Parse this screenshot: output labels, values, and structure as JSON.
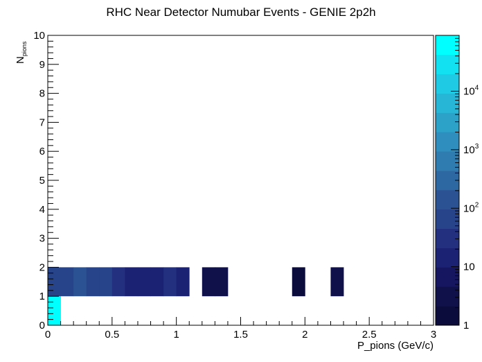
{
  "chart_data": {
    "type": "heatmap",
    "title": "RHC Near Detector Numubar Events - GENIE 2p2h",
    "xlabel": "P_pions (GeV/c)",
    "ylabel_main": "N",
    "ylabel_sub": "pions",
    "xlim": [
      0,
      3
    ],
    "ylim": [
      0,
      10
    ],
    "x_ticks": [
      "0",
      "0.5",
      "1",
      "1.5",
      "2",
      "2.5",
      "3"
    ],
    "y_ticks": [
      "0",
      "1",
      "2",
      "3",
      "4",
      "5",
      "6",
      "7",
      "8",
      "9",
      "10"
    ],
    "z_scale": "log",
    "zlim": [
      1,
      90000
    ],
    "z_ticks": [
      {
        "value": 1,
        "label": "1"
      },
      {
        "value": 10,
        "label": "10"
      },
      {
        "value": 100,
        "label": "10",
        "exp": "2"
      },
      {
        "value": 1000,
        "label": "10",
        "exp": "3"
      },
      {
        "value": 10000,
        "label": "10",
        "exp": "4"
      }
    ],
    "bin_width": 0.1,
    "bins": [
      {
        "x": 0.0,
        "y": 0,
        "z": 90000
      },
      {
        "x": 0.0,
        "y": 1,
        "z": 50
      },
      {
        "x": 0.1,
        "y": 1,
        "z": 60
      },
      {
        "x": 0.2,
        "y": 1,
        "z": 120
      },
      {
        "x": 0.3,
        "y": 1,
        "z": 90
      },
      {
        "x": 0.4,
        "y": 1,
        "z": 60
      },
      {
        "x": 0.5,
        "y": 1,
        "z": 30
      },
      {
        "x": 0.6,
        "y": 1,
        "z": 20
      },
      {
        "x": 0.7,
        "y": 1,
        "z": 10
      },
      {
        "x": 0.8,
        "y": 1,
        "z": 10
      },
      {
        "x": 0.9,
        "y": 1,
        "z": 40
      },
      {
        "x": 1.0,
        "y": 1,
        "z": 15
      },
      {
        "x": 1.2,
        "y": 1,
        "z": 4
      },
      {
        "x": 1.3,
        "y": 1,
        "z": 4
      },
      {
        "x": 1.9,
        "y": 1,
        "z": 2
      },
      {
        "x": 2.2,
        "y": 1,
        "z": 3
      }
    ],
    "palette": [
      "#0b0b3c",
      "#10104a",
      "#161660",
      "#1c2273",
      "#22307f",
      "#274389",
      "#2b5394",
      "#2e68a2",
      "#2f7cb0",
      "#2f8ebd",
      "#2ca2c9",
      "#27b6d6",
      "#1fcbe4",
      "#12e1f1",
      "#00ffff"
    ],
    "grid": false,
    "legend": "colorbar-right"
  }
}
